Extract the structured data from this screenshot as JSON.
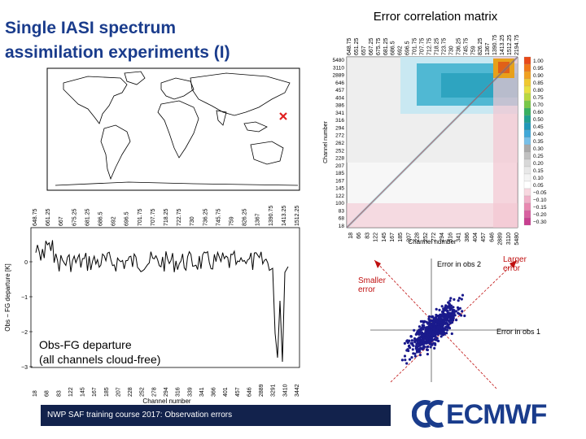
{
  "slide": {
    "title": "Single IASI spectrum\nassimilation experiments (I)",
    "footer": "NWP SAF training course 2017: Observation errors",
    "logo_text": "ECMWF",
    "colors": {
      "title": "#1a3c8c",
      "footer_bg": "#12224c",
      "logo": "#1a3c8c"
    }
  },
  "map": {
    "marker_icon": "cross-marker-icon",
    "marker_color": "#e02020"
  },
  "departure_plot": {
    "ylabel": "Obs − FG departure [K]",
    "xlabel": "Channel number",
    "caption": "Obs-FG departure\n(all channels cloud-free)",
    "yticks": [
      "0",
      "−1",
      "−2",
      "−3"
    ],
    "top_wavenumber_ticks": [
      "648.75",
      "661.25",
      "667",
      "675.25",
      "681.25",
      "686.5",
      "692",
      "696.5",
      "701.75",
      "707.75",
      "718.25",
      "722.75",
      "730",
      "736.25",
      "745.75",
      "759",
      "826.25",
      "1367",
      "1390.75",
      "1413.25",
      "1512.25"
    ],
    "bottom_channel_ticks": [
      "18",
      "68",
      "83",
      "122",
      "145",
      "167",
      "185",
      "207",
      "228",
      "252",
      "278",
      "294",
      "316",
      "339",
      "341",
      "366",
      "401",
      "457",
      "646",
      "2889",
      "3291",
      "3410",
      "3442"
    ]
  },
  "correlation_matrix": {
    "title": "Error correlation matrix",
    "xlabel": "Channel number",
    "ylabel": "Channel number",
    "top_wavenumber_ticks": [
      "648.75",
      "651.25",
      "657",
      "667.25",
      "675.75",
      "681.25",
      "686.5",
      "692",
      "696.5",
      "701.75",
      "707.75",
      "712.75",
      "718.25",
      "723.75",
      "730",
      "736.25",
      "745.75",
      "759",
      "826.25",
      "1367",
      "1390.75",
      "1413.25",
      "1512.25",
      "2194.75"
    ],
    "left_channel_ticks": [
      "5480",
      "3110",
      "2889",
      "646",
      "457",
      "404",
      "386",
      "341",
      "316",
      "294",
      "272",
      "262",
      "252",
      "228",
      "207",
      "185",
      "167",
      "145",
      "122",
      "100",
      "83",
      "68",
      "18"
    ],
    "bottom_channel_ticks": [
      "18",
      "66",
      "83",
      "122",
      "145",
      "167",
      "185",
      "207",
      "228",
      "252",
      "272",
      "294",
      "316",
      "341",
      "386",
      "404",
      "457",
      "646",
      "2889",
      "3110",
      "5480"
    ],
    "colorbar": [
      "1.00",
      "0.95",
      "0.90",
      "0.85",
      "0.80",
      "0.75",
      "0.70",
      "0.60",
      "0.50",
      "0.45",
      "0.40",
      "0.35",
      "0.30",
      "0.25",
      "0.20",
      "0.15",
      "0.10",
      "0.05",
      "−0.05",
      "−0.10",
      "−0.15",
      "−0.20",
      "−0.30"
    ]
  },
  "scatter": {
    "y_axis_label": "Error in obs 2",
    "x_axis_label": "Error in obs 1",
    "smaller_label": "Smaller\nerror",
    "larger_label": "Larger\nerror",
    "point_color": "#1a1a8c",
    "arrow_color": "#c01010"
  }
}
